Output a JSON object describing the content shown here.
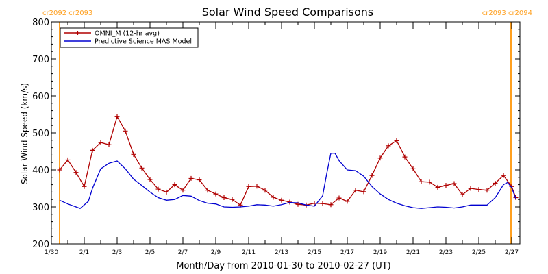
{
  "chart_data": {
    "type": "line",
    "title": "Solar Wind Speed Comparisons",
    "xlabel": "Month/Day from 2010-01-30 to 2010-02-27 (UT)",
    "ylabel": "Solar Wind Speed (km/s)",
    "xlim": [
      "2010-01-30",
      "2010-02-27 12:00"
    ],
    "ylim": [
      200,
      800
    ],
    "x_ticks": [
      {
        "date": "2010-01-30",
        "label": "1/30"
      },
      {
        "date": "2010-02-01",
        "label": "2/1"
      },
      {
        "date": "2010-02-03",
        "label": "2/3"
      },
      {
        "date": "2010-02-05",
        "label": "2/5"
      },
      {
        "date": "2010-02-07",
        "label": "2/7"
      },
      {
        "date": "2010-02-09",
        "label": "2/9"
      },
      {
        "date": "2010-02-11",
        "label": "2/11"
      },
      {
        "date": "2010-02-13",
        "label": "2/13"
      },
      {
        "date": "2010-02-15",
        "label": "2/15"
      },
      {
        "date": "2010-02-17",
        "label": "2/17"
      },
      {
        "date": "2010-02-19",
        "label": "2/19"
      },
      {
        "date": "2010-02-21",
        "label": "2/21"
      },
      {
        "date": "2010-02-23",
        "label": "2/23"
      },
      {
        "date": "2010-02-25",
        "label": "2/25"
      },
      {
        "date": "2010-02-27",
        "label": "2/27"
      }
    ],
    "y_ticks": [
      200,
      300,
      400,
      500,
      600,
      700,
      800
    ],
    "grid": false,
    "legend_position": "top-left",
    "carrington_markers": [
      {
        "date": "2010-01-30 12:00",
        "label": "cr2092 cr2093",
        "color": "#ffa020",
        "label_side": "left"
      },
      {
        "date": "2010-02-26 23:00",
        "label": "cr2093 cr2094",
        "color": "#ffa020",
        "label_side": "right"
      }
    ],
    "series": [
      {
        "name": "OMNI_M (12-hr avg)",
        "color": "#b00000",
        "marker": "plus",
        "points": [
          [
            "2010-01-30 12:00",
            400
          ],
          [
            "2010-01-31 00:00",
            427
          ],
          [
            "2010-01-31 12:00",
            393
          ],
          [
            "2010-02-01 00:00",
            355
          ],
          [
            "2010-02-01 12:00",
            453
          ],
          [
            "2010-02-02 00:00",
            474
          ],
          [
            "2010-02-02 12:00",
            468
          ],
          [
            "2010-02-03 00:00",
            544
          ],
          [
            "2010-02-03 12:00",
            505
          ],
          [
            "2010-02-04 00:00",
            442
          ],
          [
            "2010-02-04 12:00",
            405
          ],
          [
            "2010-02-05 00:00",
            374
          ],
          [
            "2010-02-05 12:00",
            348
          ],
          [
            "2010-02-06 00:00",
            340
          ],
          [
            "2010-02-06 12:00",
            360
          ],
          [
            "2010-02-07 00:00",
            345
          ],
          [
            "2010-02-07 12:00",
            377
          ],
          [
            "2010-02-08 00:00",
            373
          ],
          [
            "2010-02-08 12:00",
            345
          ],
          [
            "2010-02-09 00:00",
            335
          ],
          [
            "2010-02-09 12:00",
            325
          ],
          [
            "2010-02-10 00:00",
            320
          ],
          [
            "2010-02-10 12:00",
            305
          ],
          [
            "2010-02-11 00:00",
            355
          ],
          [
            "2010-02-11 12:00",
            356
          ],
          [
            "2010-02-12 00:00",
            345
          ],
          [
            "2010-02-12 12:00",
            326
          ],
          [
            "2010-02-13 00:00",
            318
          ],
          [
            "2010-02-13 12:00",
            313
          ],
          [
            "2010-02-14 00:00",
            307
          ],
          [
            "2010-02-14 12:00",
            305
          ],
          [
            "2010-02-15 00:00",
            310
          ],
          [
            "2010-02-15 12:00",
            309
          ],
          [
            "2010-02-16 00:00",
            306
          ],
          [
            "2010-02-16 12:00",
            324
          ],
          [
            "2010-02-17 00:00",
            315
          ],
          [
            "2010-02-17 12:00",
            345
          ],
          [
            "2010-02-18 00:00",
            341
          ],
          [
            "2010-02-18 12:00",
            385
          ],
          [
            "2010-02-19 00:00",
            432
          ],
          [
            "2010-02-19 12:00",
            465
          ],
          [
            "2010-02-20 00:00",
            479
          ],
          [
            "2010-02-20 12:00",
            435
          ],
          [
            "2010-02-21 00:00",
            403
          ],
          [
            "2010-02-21 12:00",
            368
          ],
          [
            "2010-02-22 00:00",
            367
          ],
          [
            "2010-02-22 12:00",
            353
          ],
          [
            "2010-02-23 00:00",
            358
          ],
          [
            "2010-02-23 12:00",
            363
          ],
          [
            "2010-02-24 00:00",
            333
          ],
          [
            "2010-02-24 12:00",
            350
          ],
          [
            "2010-02-25 00:00",
            347
          ],
          [
            "2010-02-25 12:00",
            345
          ],
          [
            "2010-02-26 00:00",
            364
          ],
          [
            "2010-02-26 12:00",
            385
          ],
          [
            "2010-02-27 00:00",
            355
          ],
          [
            "2010-02-27 06:00",
            325
          ]
        ]
      },
      {
        "name": "Predictive Science MAS Model",
        "color": "#0000d0",
        "marker": "none",
        "points": [
          [
            "2010-01-30 12:00",
            318
          ],
          [
            "2010-01-31 00:00",
            308
          ],
          [
            "2010-01-31 12:00",
            300
          ],
          [
            "2010-01-31 18:00",
            296
          ],
          [
            "2010-02-01 06:00",
            315
          ],
          [
            "2010-02-01 12:00",
            350
          ],
          [
            "2010-02-02 00:00",
            403
          ],
          [
            "2010-02-02 12:00",
            418
          ],
          [
            "2010-02-03 00:00",
            424
          ],
          [
            "2010-02-03 12:00",
            403
          ],
          [
            "2010-02-04 00:00",
            375
          ],
          [
            "2010-02-04 12:00",
            358
          ],
          [
            "2010-02-05 00:00",
            340
          ],
          [
            "2010-02-05 12:00",
            325
          ],
          [
            "2010-02-06 00:00",
            318
          ],
          [
            "2010-02-06 12:00",
            320
          ],
          [
            "2010-02-07 00:00",
            331
          ],
          [
            "2010-02-07 12:00",
            329
          ],
          [
            "2010-02-08 00:00",
            317
          ],
          [
            "2010-02-08 12:00",
            310
          ],
          [
            "2010-02-09 00:00",
            308
          ],
          [
            "2010-02-09 12:00",
            300
          ],
          [
            "2010-02-10 00:00",
            299
          ],
          [
            "2010-02-10 12:00",
            300
          ],
          [
            "2010-02-11 00:00",
            302
          ],
          [
            "2010-02-11 12:00",
            306
          ],
          [
            "2010-02-12 00:00",
            305
          ],
          [
            "2010-02-12 12:00",
            302
          ],
          [
            "2010-02-13 00:00",
            306
          ],
          [
            "2010-02-13 12:00",
            312
          ],
          [
            "2010-02-14 00:00",
            311
          ],
          [
            "2010-02-14 12:00",
            305
          ],
          [
            "2010-02-15 00:00",
            302
          ],
          [
            "2010-02-15 12:00",
            330
          ],
          [
            "2010-02-15 18:00",
            390
          ],
          [
            "2010-02-16 00:00",
            445
          ],
          [
            "2010-02-16 06:00",
            445
          ],
          [
            "2010-02-16 12:00",
            425
          ],
          [
            "2010-02-17 00:00",
            400
          ],
          [
            "2010-02-17 12:00",
            398
          ],
          [
            "2010-02-18 00:00",
            383
          ],
          [
            "2010-02-18 12:00",
            355
          ],
          [
            "2010-02-19 00:00",
            335
          ],
          [
            "2010-02-19 12:00",
            320
          ],
          [
            "2010-02-20 00:00",
            310
          ],
          [
            "2010-02-20 12:00",
            303
          ],
          [
            "2010-02-21 00:00",
            298
          ],
          [
            "2010-02-21 12:00",
            296
          ],
          [
            "2010-02-22 00:00",
            298
          ],
          [
            "2010-02-22 12:00",
            300
          ],
          [
            "2010-02-23 00:00",
            299
          ],
          [
            "2010-02-23 12:00",
            297
          ],
          [
            "2010-02-24 00:00",
            300
          ],
          [
            "2010-02-24 12:00",
            305
          ],
          [
            "2010-02-25 00:00",
            305
          ],
          [
            "2010-02-25 12:00",
            305
          ],
          [
            "2010-02-26 00:00",
            325
          ],
          [
            "2010-02-26 12:00",
            360
          ],
          [
            "2010-02-26 18:00",
            366
          ],
          [
            "2010-02-27 00:00",
            352
          ],
          [
            "2010-02-27 06:00",
            322
          ]
        ]
      }
    ]
  }
}
